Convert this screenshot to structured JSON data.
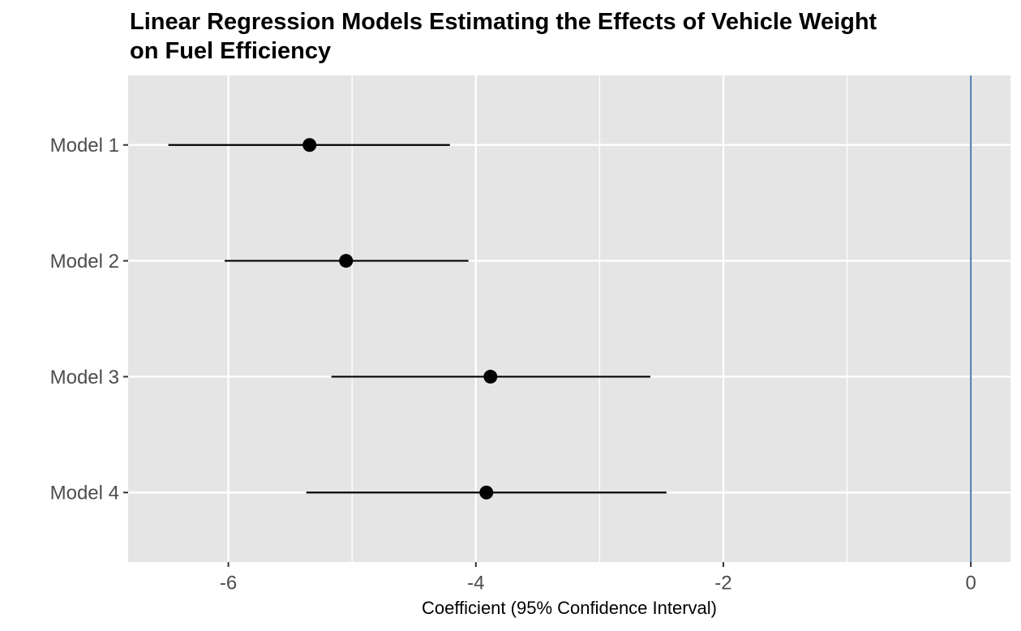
{
  "chart_data": {
    "type": "coefficient",
    "title": [
      "Linear Regression Models Estimating the Effects of Vehicle Weight",
      " on Fuel Efficiency"
    ],
    "x_label": "Coefficient (95% Confidence Interval)",
    "categories": [
      "Model 1",
      "Model 2",
      "Model 3",
      "Model 4"
    ],
    "estimates": [
      -5.344,
      -5.049,
      -3.882,
      -3.915
    ],
    "lower": [
      -6.485,
      -6.03,
      -5.167,
      -5.37
    ],
    "upper": [
      -4.21,
      -4.06,
      -2.59,
      -2.46
    ],
    "color": "#000000",
    "xlim": [
      -6.81,
      0.32
    ],
    "xticks": [
      -6,
      -4,
      -2,
      0
    ],
    "x_minor_breaks": [
      -5,
      -3,
      -1
    ],
    "reference_line": {
      "value": 0,
      "color": "#4a7bb0"
    },
    "grid": true
  }
}
